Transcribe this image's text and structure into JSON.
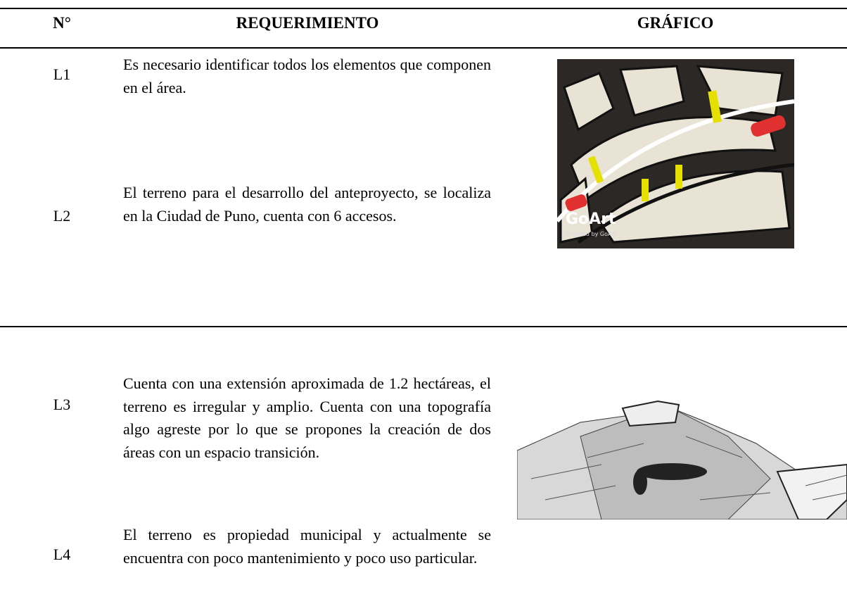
{
  "header": {
    "columns": [
      "N°",
      "REQUERIMIENTO",
      "GRÁFICO"
    ]
  },
  "rows": [
    {
      "id": "L1",
      "text": "Es necesario identificar todos los elementos que componen en el área."
    },
    {
      "id": "L2",
      "text": "El terreno para el desarrollo del anteproyecto, se localiza en la Ciudad de Puno, cuenta con 6 accesos."
    },
    {
      "id": "L3",
      "text": "Cuenta con una extensión aproximada de 1.2 hectáreas, el terreno es irregular y amplio. Cuenta con una topografía algo agreste por lo que se propones la creación de dos áreas con un espacio transición."
    },
    {
      "id": "L4",
      "text": "El terreno es propiedad municipal y actualmente se encuentra con poco mantenimiento y poco uso particular."
    }
  ],
  "images": {
    "watermark": "GoArt",
    "watermark_sub": "Powered by GoArt"
  }
}
